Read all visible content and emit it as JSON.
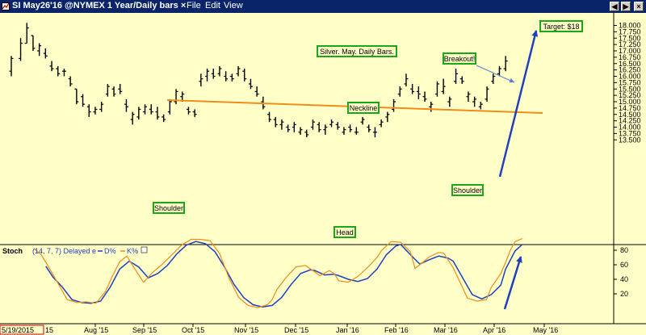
{
  "window": {
    "title": "SI May26'16 @NYMEX  1 Year/Daily bars",
    "close_glyph": "×",
    "menus": [
      "File",
      "Edit",
      "View"
    ],
    "buttons": [
      "◀",
      "▶",
      "×"
    ]
  },
  "colors": {
    "background": "#ffffc8",
    "bars": "#000000",
    "neckline": "#f08c19",
    "arrow": "#1f3fbf",
    "label_border": "#1aa81a",
    "d_line": "#1f3fbf",
    "k_line": "#f08c19"
  },
  "chart_data": [
    {
      "type": "ohlc",
      "ylim": [
        13.25,
        18.25
      ],
      "yticks": [
        "13.500",
        "13.750",
        "14.000",
        "14.250",
        "14.500",
        "14.750",
        "15.000",
        "15.250",
        "15.500",
        "15.750",
        "16.000",
        "16.250",
        "16.500",
        "16.750",
        "17.000",
        "17.250",
        "17.500",
        "17.750",
        "18.000"
      ],
      "xticks": [
        "Aug '15",
        "Sep '15",
        "Oct '15",
        "Nov '15",
        "Dec '15",
        "Jan '16",
        "Feb '16",
        "Mar '16",
        "Apr '16",
        "May '16"
      ],
      "start_label": "5/19/2015",
      "start_suffix": "15",
      "bars": [
        [
          0,
          16.2,
          16.8,
          16.0,
          16.7
        ],
        [
          3,
          16.7,
          17.5,
          16.6,
          17.3
        ],
        [
          5,
          17.3,
          18.1,
          17.3,
          17.9
        ],
        [
          7,
          17.6,
          17.6,
          17.0,
          17.1
        ],
        [
          9,
          17.0,
          17.3,
          16.8,
          17.2
        ],
        [
          11,
          16.9,
          17.1,
          16.7,
          16.8
        ],
        [
          13,
          16.4,
          16.6,
          16.2,
          16.3
        ],
        [
          15,
          16.3,
          16.4,
          16.0,
          16.1
        ],
        [
          17,
          16.2,
          16.3,
          16.0,
          16.2
        ],
        [
          19,
          15.9,
          16.0,
          15.6,
          15.7
        ],
        [
          21,
          15.5,
          15.5,
          14.9,
          15.0
        ],
        [
          23,
          15.2,
          15.3,
          14.8,
          14.9
        ],
        [
          25,
          14.8,
          14.9,
          14.4,
          14.6
        ],
        [
          27,
          14.6,
          14.8,
          14.5,
          14.7
        ],
        [
          29,
          14.7,
          15.0,
          14.6,
          14.9
        ],
        [
          31,
          15.3,
          15.7,
          15.2,
          15.6
        ],
        [
          33,
          15.5,
          15.6,
          15.2,
          15.3
        ],
        [
          35,
          15.5,
          15.7,
          15.3,
          15.4
        ],
        [
          37,
          14.9,
          15.1,
          14.6,
          14.8
        ],
        [
          39,
          14.3,
          14.6,
          14.1,
          14.5
        ],
        [
          41,
          14.4,
          14.8,
          14.3,
          14.7
        ],
        [
          43,
          14.6,
          14.9,
          14.5,
          14.8
        ],
        [
          45,
          14.7,
          14.9,
          14.5,
          14.6
        ],
        [
          47,
          14.6,
          14.8,
          14.3,
          14.4
        ],
        [
          49,
          14.4,
          14.5,
          14.2,
          14.3
        ],
        [
          51,
          14.6,
          15.1,
          14.5,
          15.0
        ],
        [
          53,
          15.0,
          15.5,
          14.9,
          15.4
        ],
        [
          55,
          15.2,
          15.4,
          15.0,
          15.3
        ],
        [
          57,
          14.7,
          14.8,
          14.5,
          14.6
        ],
        [
          59,
          14.6,
          14.7,
          14.4,
          14.5
        ],
        [
          61,
          15.8,
          16.1,
          15.6,
          15.9
        ],
        [
          63,
          16.0,
          16.3,
          15.8,
          16.2
        ],
        [
          65,
          16.1,
          16.3,
          15.9,
          16.0
        ],
        [
          67,
          16.1,
          16.4,
          16.0,
          16.3
        ],
        [
          69,
          16.0,
          16.2,
          15.8,
          15.9
        ],
        [
          71,
          16.0,
          16.1,
          15.8,
          15.9
        ],
        [
          73,
          16.1,
          16.4,
          16.0,
          16.3
        ],
        [
          75,
          16.2,
          16.3,
          15.8,
          15.9
        ],
        [
          77,
          15.7,
          15.9,
          15.5,
          15.6
        ],
        [
          79,
          15.4,
          15.6,
          15.2,
          15.3
        ],
        [
          81,
          15.0,
          15.2,
          14.7,
          14.8
        ],
        [
          83,
          14.5,
          14.6,
          14.2,
          14.3
        ],
        [
          85,
          14.3,
          14.4,
          14.0,
          14.1
        ],
        [
          87,
          14.1,
          14.3,
          13.9,
          14.2
        ],
        [
          89,
          14.0,
          14.1,
          13.8,
          13.9
        ],
        [
          91,
          14.0,
          14.2,
          13.8,
          14.1
        ],
        [
          93,
          13.8,
          14.0,
          13.7,
          13.9
        ],
        [
          95,
          13.8,
          13.9,
          13.6,
          13.7
        ],
        [
          97,
          14.0,
          14.3,
          13.9,
          14.2
        ],
        [
          99,
          14.1,
          14.2,
          13.8,
          13.9
        ],
        [
          101,
          13.9,
          14.1,
          13.7,
          14.0
        ],
        [
          103,
          14.1,
          14.3,
          14.0,
          14.2
        ],
        [
          105,
          14.1,
          14.2,
          13.9,
          14.0
        ],
        [
          107,
          13.8,
          14.0,
          13.7,
          13.9
        ],
        [
          109,
          14.0,
          14.1,
          13.8,
          13.9
        ],
        [
          111,
          13.8,
          14.0,
          13.7,
          13.8
        ],
        [
          113,
          14.2,
          14.4,
          14.1,
          14.3
        ],
        [
          115,
          14.0,
          14.1,
          13.8,
          13.9
        ],
        [
          117,
          13.8,
          14.0,
          13.6,
          13.8
        ],
        [
          119,
          14.1,
          14.3,
          14.0,
          14.2
        ],
        [
          121,
          14.4,
          14.6,
          14.2,
          14.5
        ],
        [
          123,
          14.7,
          15.1,
          14.6,
          15.0
        ],
        [
          125,
          15.3,
          15.6,
          15.2,
          15.5
        ],
        [
          127,
          15.7,
          16.1,
          15.6,
          15.9
        ],
        [
          129,
          15.5,
          15.7,
          15.3,
          15.4
        ],
        [
          131,
          15.4,
          15.6,
          15.1,
          15.3
        ],
        [
          133,
          15.2,
          15.4,
          15.0,
          15.1
        ],
        [
          135,
          14.8,
          15.0,
          14.6,
          14.9
        ],
        [
          137,
          15.3,
          15.8,
          15.2,
          15.7
        ],
        [
          139,
          15.4,
          15.9,
          15.3,
          15.6
        ],
        [
          141,
          15.0,
          15.2,
          14.8,
          15.1
        ],
        [
          143,
          15.8,
          16.3,
          15.7,
          16.1
        ],
        [
          145,
          15.9,
          16.0,
          15.7,
          15.8
        ],
        [
          147,
          15.2,
          15.4,
          15.0,
          15.3
        ],
        [
          149,
          15.0,
          15.2,
          14.8,
          15.1
        ],
        [
          151,
          14.8,
          15.0,
          14.7,
          14.9
        ],
        [
          153,
          15.1,
          15.6,
          15.0,
          15.5
        ],
        [
          155,
          15.8,
          16.1,
          15.7,
          16.0
        ],
        [
          157,
          16.1,
          16.4,
          16.0,
          16.3
        ],
        [
          159,
          16.3,
          16.8,
          16.2,
          16.6
        ]
      ]
    },
    {
      "type": "line",
      "title": "Stoch",
      "params": "(14, 7, 7) Delayed e",
      "legend": [
        "D%",
        "K%"
      ],
      "ylim": [
        0,
        100
      ],
      "yticks": [
        "20",
        "40",
        "60",
        "80"
      ],
      "series": [
        {
          "name": "D%",
          "values": [
            [
              5,
              58
            ],
            [
              8,
              43
            ],
            [
              12,
              29
            ],
            [
              16,
              12
            ],
            [
              20,
              8
            ],
            [
              24,
              7
            ],
            [
              28,
              10
            ],
            [
              32,
              29
            ],
            [
              36,
              54
            ],
            [
              40,
              65
            ],
            [
              44,
              57
            ],
            [
              48,
              42
            ],
            [
              52,
              48
            ],
            [
              56,
              59
            ],
            [
              60,
              75
            ],
            [
              64,
              87
            ],
            [
              68,
              92
            ],
            [
              72,
              89
            ],
            [
              76,
              78
            ],
            [
              80,
              57
            ],
            [
              84,
              33
            ],
            [
              88,
              15
            ],
            [
              92,
              5
            ],
            [
              96,
              2
            ],
            [
              100,
              4
            ],
            [
              104,
              15
            ],
            [
              108,
              33
            ],
            [
              112,
              48
            ],
            [
              116,
              53
            ],
            [
              118,
              52
            ],
            [
              122,
              46
            ],
            [
              126,
              47
            ],
            [
              128,
              45
            ],
            [
              132,
              40
            ],
            [
              136,
              37
            ],
            [
              140,
              41
            ],
            [
              144,
              54
            ],
            [
              148,
              74
            ],
            [
              152,
              86
            ],
            [
              154,
              88
            ],
            [
              158,
              74
            ],
            [
              162,
              61
            ],
            [
              166,
              67
            ],
            [
              170,
              72
            ],
            [
              174,
              69
            ],
            [
              176,
              65
            ],
            [
              180,
              42
            ],
            [
              184,
              19
            ],
            [
              188,
              13
            ],
            [
              192,
              19
            ],
            [
              196,
              32
            ],
            [
              198,
              54
            ],
            [
              202,
              79
            ],
            [
              205,
              88
            ]
          ]
        },
        {
          "name": "K%",
          "values": [
            [
              0,
              82
            ],
            [
              3,
              74
            ],
            [
              6,
              58
            ],
            [
              10,
              35
            ],
            [
              14,
              12
            ],
            [
              18,
              8
            ],
            [
              22,
              9
            ],
            [
              26,
              7
            ],
            [
              30,
              23
            ],
            [
              33,
              45
            ],
            [
              36,
              64
            ],
            [
              39,
              72
            ],
            [
              42,
              56
            ],
            [
              46,
              36
            ],
            [
              50,
              50
            ],
            [
              54,
              61
            ],
            [
              58,
              74
            ],
            [
              62,
              87
            ],
            [
              66,
              95
            ],
            [
              70,
              95
            ],
            [
              74,
              93
            ],
            [
              78,
              75
            ],
            [
              82,
              41
            ],
            [
              86,
              15
            ],
            [
              90,
              4
            ],
            [
              94,
              1
            ],
            [
              98,
              5
            ],
            [
              100,
              12
            ],
            [
              102,
              26
            ],
            [
              106,
              43
            ],
            [
              110,
              57
            ],
            [
              114,
              59
            ],
            [
              118,
              50
            ],
            [
              120,
              45
            ],
            [
              124,
              52
            ],
            [
              126,
              48
            ],
            [
              128,
              38
            ],
            [
              132,
              36
            ],
            [
              136,
              44
            ],
            [
              140,
              56
            ],
            [
              144,
              70
            ],
            [
              146,
              80
            ],
            [
              150,
              92
            ],
            [
              154,
              91
            ],
            [
              158,
              78
            ],
            [
              160,
              55
            ],
            [
              162,
              60
            ],
            [
              166,
              71
            ],
            [
              170,
              77
            ],
            [
              172,
              76
            ],
            [
              176,
              56
            ],
            [
              180,
              28
            ],
            [
              182,
              14
            ],
            [
              186,
              10
            ],
            [
              190,
              12
            ],
            [
              192,
              29
            ],
            [
              196,
              48
            ],
            [
              198,
              63
            ],
            [
              200,
              80
            ],
            [
              202,
              92
            ],
            [
              205,
              96
            ]
          ]
        }
      ]
    }
  ],
  "annotations": {
    "title_box": "Silver. May. Daily Bars.",
    "neckline": "Neckline",
    "shoulder_left": "Shoulder",
    "head": "Head",
    "shoulder_right": "Shoulder",
    "breakout": "Breakout!",
    "target": "Target: $18"
  }
}
